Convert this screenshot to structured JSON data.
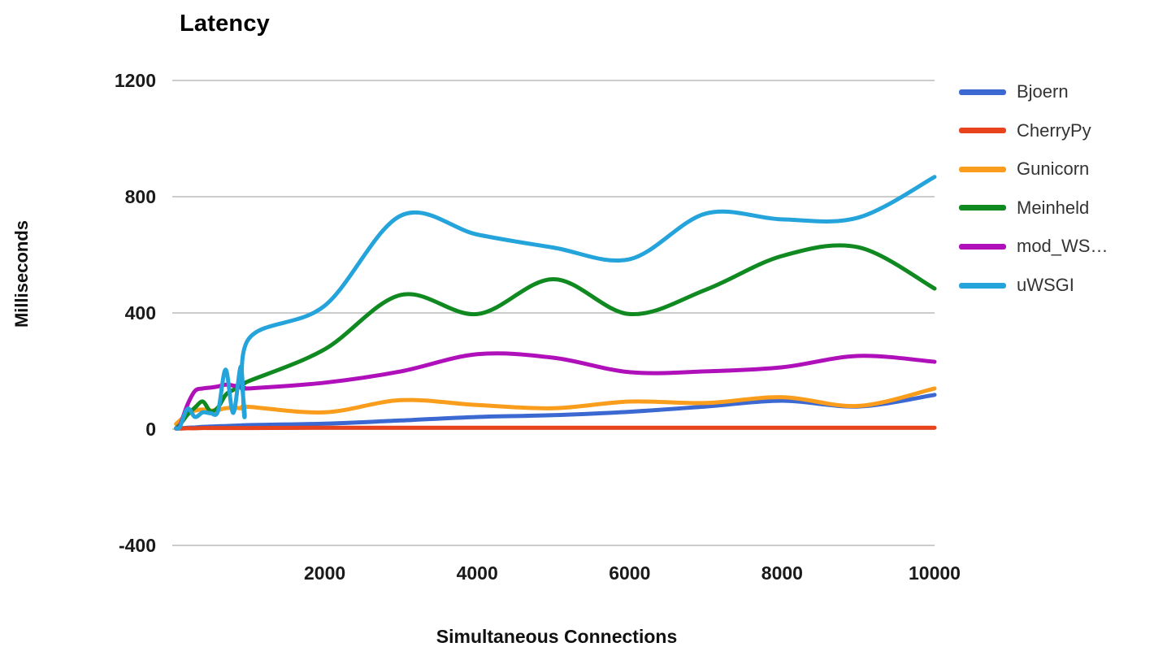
{
  "title": "Latency",
  "axes": {
    "y": {
      "title": "Milliseconds",
      "ticks": [
        1200,
        800,
        400,
        0,
        -400
      ],
      "min": -400,
      "max": 1200
    },
    "x": {
      "title": "Simultaneous Connections",
      "ticks": [
        2000,
        4000,
        6000,
        8000,
        10000
      ],
      "min": 0,
      "max": 10000
    }
  },
  "colors": {
    "grid": "#cccccc",
    "tick_text": "#1a1a1a",
    "legend_text": "#333333"
  },
  "chart_data": {
    "type": "line",
    "title": "Latency",
    "xlabel": "Simultaneous Connections",
    "ylabel": "Milliseconds",
    "xlim": [
      0,
      10000
    ],
    "ylim": [
      -400,
      1200
    ],
    "grid": true,
    "legend_position": "right",
    "curve": "smooth",
    "x": [
      50,
      100,
      200,
      300,
      400,
      500,
      600,
      700,
      800,
      900,
      950,
      1000,
      2000,
      3000,
      4000,
      5000,
      6000,
      7000,
      8000,
      9000,
      10000
    ],
    "series": [
      {
        "name": "Bjoern",
        "color": "#3B69D1",
        "values": [
          2,
          3,
          5,
          6,
          8,
          9,
          10,
          11,
          12,
          13,
          13,
          14,
          19,
          30,
          42,
          48,
          60,
          78,
          98,
          78,
          118
        ]
      },
      {
        "name": "CherryPy",
        "color": "#E8431C",
        "values": [
          2,
          2,
          3,
          3,
          4,
          4,
          4,
          4,
          4,
          4,
          4,
          4,
          5,
          5,
          5,
          5,
          5,
          5,
          5,
          5,
          5
        ]
      },
      {
        "name": "Gunicorn",
        "color": "#FA9D1C",
        "values": [
          18,
          30,
          52,
          64,
          68,
          64,
          66,
          72,
          74,
          72,
          73,
          77,
          58,
          100,
          83,
          72,
          95,
          90,
          110,
          80,
          140
        ]
      },
      {
        "name": "Meinheld",
        "color": "#108A20",
        "values": [
          4,
          15,
          50,
          75,
          95,
          62,
          75,
          118,
          135,
          150,
          158,
          165,
          275,
          462,
          396,
          516,
          396,
          480,
          596,
          626,
          484
        ]
      },
      {
        "name": "mod_WS…",
        "color": "#AF10BA",
        "values": [
          3,
          12,
          85,
          132,
          140,
          143,
          147,
          153,
          150,
          144,
          142,
          140,
          160,
          199,
          258,
          246,
          196,
          199,
          213,
          252,
          232
        ]
      },
      {
        "name": "uWSGI",
        "color": "#24A4DA",
        "values": [
          3,
          8,
          70,
          42,
          58,
          55,
          62,
          205,
          56,
          215,
          42,
          310,
          425,
          735,
          670,
          625,
          585,
          742,
          722,
          728,
          868
        ]
      }
    ]
  }
}
